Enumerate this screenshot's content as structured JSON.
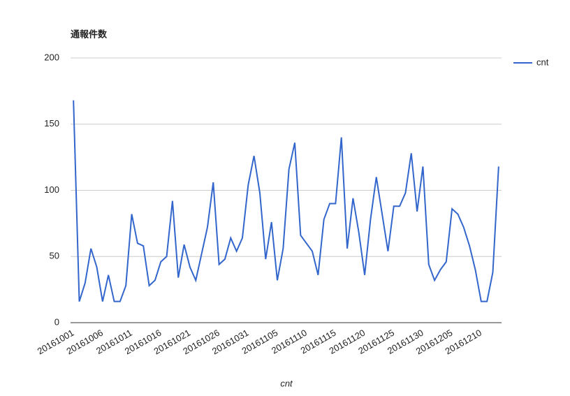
{
  "chart_data": {
    "type": "line",
    "title": "通報件数",
    "x_label": "cnt",
    "categories": [
      "20161001",
      null,
      null,
      null,
      null,
      "20161006",
      null,
      null,
      null,
      null,
      "20161011",
      null,
      null,
      null,
      null,
      "20161016",
      null,
      null,
      null,
      null,
      "20161021",
      null,
      null,
      null,
      null,
      "20161026",
      null,
      null,
      null,
      null,
      "20161031",
      null,
      null,
      null,
      null,
      "20161105",
      null,
      null,
      null,
      null,
      "20161110",
      null,
      null,
      null,
      null,
      "20161115",
      null,
      null,
      null,
      null,
      "20161120",
      null,
      null,
      null,
      null,
      "20161125",
      null,
      null,
      null,
      null,
      "20161130",
      null,
      null,
      null,
      null,
      "20161205",
      null,
      null,
      null,
      null,
      "20161210",
      null,
      null,
      null
    ],
    "series": [
      {
        "name": "cnt",
        "color": "#3366cc",
        "values": [
          168,
          16,
          30,
          56,
          42,
          16,
          36,
          16,
          16,
          28,
          82,
          60,
          58,
          28,
          32,
          46,
          50,
          92,
          34,
          59,
          42,
          32,
          52,
          72,
          106,
          44,
          48,
          64,
          54,
          64,
          104,
          126,
          98,
          48,
          76,
          32,
          56,
          116,
          136,
          66,
          60,
          54,
          36,
          78,
          90,
          90,
          140,
          56,
          94,
          68,
          36,
          78,
          110,
          82,
          54,
          88,
          88,
          98,
          128,
          84,
          118,
          44,
          32,
          40,
          46,
          86,
          82,
          72,
          58,
          40,
          16,
          16,
          38,
          118
        ]
      }
    ],
    "ylim": [
      0,
      200
    ],
    "yticks": [
      0,
      50,
      100,
      150,
      200
    ],
    "grid": true,
    "legend": "right"
  }
}
